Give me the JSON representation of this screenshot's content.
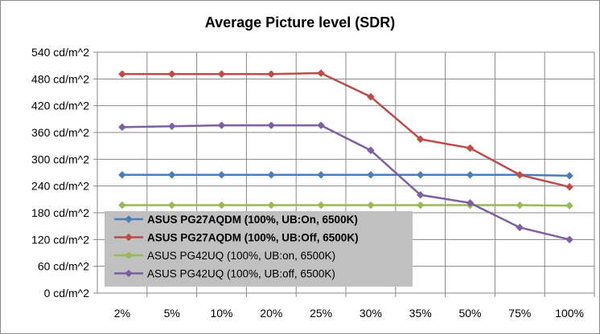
{
  "chart_data": {
    "type": "line",
    "title": "Average Picture level (SDR)",
    "xlabel": "",
    "ylabel": "",
    "categories": [
      "2%",
      "5%",
      "10%",
      "20%",
      "25%",
      "30%",
      "35%",
      "50%",
      "75%",
      "100%"
    ],
    "y_ticks": [
      "0 cd/m^2",
      "60 cd/m^2",
      "120 cd/m^2",
      "180 cd/m^2",
      "240 cd/m^2",
      "300 cd/m^2",
      "360 cd/m^2",
      "420 cd/m^2",
      "480 cd/m^2",
      "540 cd/m^2"
    ],
    "ylim": [
      0,
      540
    ],
    "grid": true,
    "legend_position": "bottom-left",
    "series": [
      {
        "name": "ASUS PG27AQDM (100%, UB:On, 6500K)",
        "color": "#4a7ebb",
        "marker": "diamond",
        "bold": true,
        "values": [
          265,
          265,
          265,
          265,
          265,
          265,
          265,
          265,
          265,
          263
        ]
      },
      {
        "name": "ASUS PG27AQDM (100%, UB:Off, 6500K)",
        "color": "#be4b48",
        "marker": "diamond",
        "bold": true,
        "values": [
          491,
          491,
          491,
          491,
          493,
          440,
          345,
          325,
          265,
          238
        ]
      },
      {
        "name": "ASUS PG42UQ (100%, UB:on, 6500K)",
        "color": "#98b954",
        "marker": "diamond",
        "bold": false,
        "values": [
          197,
          197,
          197,
          197,
          197,
          197,
          197,
          197,
          197,
          196
        ]
      },
      {
        "name": "ASUS PG42UQ (100%, UB:off, 6500K)",
        "color": "#7d60a0",
        "marker": "diamond",
        "bold": false,
        "values": [
          372,
          374,
          376,
          376,
          376,
          320,
          220,
          202,
          147,
          120
        ]
      }
    ]
  }
}
